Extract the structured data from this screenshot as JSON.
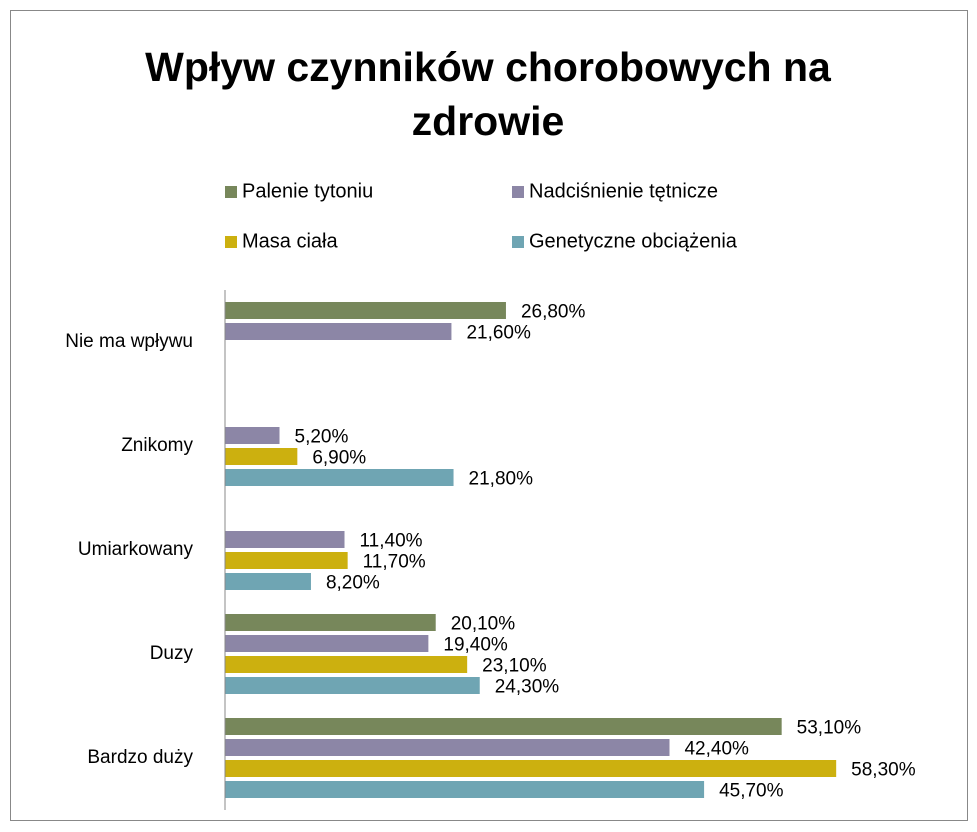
{
  "chart_data": {
    "type": "hbar",
    "title": "Wpływ czynników chorobowych na zdrowie",
    "categories": [
      "Nie ma wpływu",
      "Znikomy",
      "Umiarkowany",
      "Duzy",
      "Bardzo duży"
    ],
    "series": [
      {
        "name": "Palenie tytoniu",
        "color": "#77875b",
        "values": [
          26.8,
          null,
          null,
          20.1,
          53.1
        ],
        "value_labels": [
          "26,80%",
          null,
          null,
          "20,10%",
          "53,10%"
        ]
      },
      {
        "name": "Nadciśnienie tętnicze",
        "color": "#8c86a6",
        "values": [
          21.6,
          5.2,
          11.4,
          19.4,
          42.4
        ],
        "value_labels": [
          "21,60%",
          "5,20%",
          "11,40%",
          "19,40%",
          "42,40%"
        ]
      },
      {
        "name": "Masa ciała",
        "color": "#ccb00f",
        "values": [
          null,
          6.9,
          11.7,
          23.1,
          58.3
        ],
        "value_labels": [
          null,
          "6,90%",
          "11,70%",
          "23,10%",
          "58,30%"
        ]
      },
      {
        "name": "Genetyczne obciążenia",
        "color": "#6fa5b3",
        "values": [
          null,
          21.8,
          8.2,
          24.3,
          45.7
        ],
        "value_labels": [
          null,
          "21,80%",
          "8,20%",
          "24,30%",
          "45,70%"
        ]
      }
    ],
    "xlim": [
      0,
      60
    ]
  }
}
